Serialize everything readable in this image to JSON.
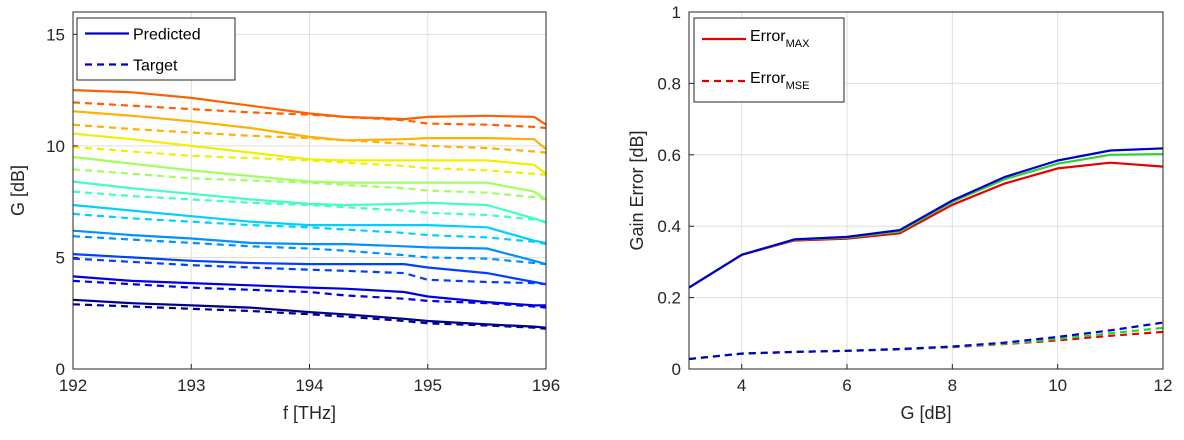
{
  "chart_data": [
    {
      "type": "line",
      "xlabel": "f  [THz]",
      "ylabel": "G  [dB]",
      "xlim": [
        192,
        196
      ],
      "ylim": [
        0,
        16
      ],
      "xticks": [
        192,
        193,
        194,
        195,
        196
      ],
      "yticks": [
        0,
        5,
        10,
        15
      ],
      "grid": true,
      "legend": {
        "position": "top-left",
        "entries": [
          {
            "label": "Predicted",
            "style": "solid",
            "color": "#0000c8"
          },
          {
            "label": "Target",
            "style": "dashed",
            "color": "#0000c8"
          }
        ]
      },
      "x": [
        192,
        192.5,
        193,
        193.5,
        194,
        194.3,
        194.8,
        195,
        195.5,
        195.9,
        196
      ],
      "series": [
        {
          "color": "#00008f",
          "style": "solid",
          "values": [
            3.1,
            2.95,
            2.85,
            2.75,
            2.55,
            2.45,
            2.25,
            2.15,
            2.0,
            1.9,
            1.85
          ]
        },
        {
          "color": "#00008f",
          "style": "dashed",
          "values": [
            2.9,
            2.8,
            2.7,
            2.6,
            2.45,
            2.35,
            2.15,
            2.05,
            1.95,
            1.85,
            1.8
          ]
        },
        {
          "color": "#0000e6",
          "style": "solid",
          "values": [
            4.15,
            3.95,
            3.85,
            3.75,
            3.65,
            3.6,
            3.45,
            3.25,
            3.0,
            2.85,
            2.85
          ]
        },
        {
          "color": "#0000e6",
          "style": "dashed",
          "values": [
            3.95,
            3.8,
            3.65,
            3.55,
            3.45,
            3.3,
            3.15,
            3.05,
            2.95,
            2.8,
            2.75
          ]
        },
        {
          "color": "#0040ff",
          "style": "solid",
          "values": [
            5.15,
            5.0,
            4.85,
            4.75,
            4.7,
            4.7,
            4.7,
            4.55,
            4.3,
            3.9,
            3.8
          ]
        },
        {
          "color": "#0040ff",
          "style": "dashed",
          "values": [
            4.95,
            4.8,
            4.65,
            4.55,
            4.45,
            4.4,
            4.3,
            4.0,
            3.9,
            3.85,
            3.8
          ]
        },
        {
          "color": "#0090ff",
          "style": "solid",
          "values": [
            6.2,
            6.0,
            5.85,
            5.65,
            5.6,
            5.6,
            5.5,
            5.45,
            5.4,
            4.85,
            4.7
          ]
        },
        {
          "color": "#0090ff",
          "style": "dashed",
          "values": [
            5.95,
            5.8,
            5.65,
            5.5,
            5.4,
            5.3,
            5.1,
            5.0,
            4.95,
            4.75,
            4.7
          ]
        },
        {
          "color": "#00d0ff",
          "style": "solid",
          "values": [
            7.35,
            7.1,
            6.85,
            6.6,
            6.45,
            6.45,
            6.45,
            6.45,
            6.35,
            5.75,
            5.65
          ]
        },
        {
          "color": "#00d0ff",
          "style": "dashed",
          "values": [
            6.95,
            6.75,
            6.6,
            6.45,
            6.35,
            6.25,
            6.1,
            6.0,
            5.9,
            5.7,
            5.6
          ]
        },
        {
          "color": "#40ffc0",
          "style": "solid",
          "values": [
            8.4,
            8.1,
            7.85,
            7.6,
            7.4,
            7.35,
            7.4,
            7.45,
            7.35,
            6.75,
            6.55
          ]
        },
        {
          "color": "#40ffc0",
          "style": "dashed",
          "values": [
            7.95,
            7.75,
            7.6,
            7.45,
            7.35,
            7.25,
            7.1,
            7.0,
            6.9,
            6.7,
            6.6
          ]
        },
        {
          "color": "#a0ff60",
          "style": "solid",
          "values": [
            9.5,
            9.2,
            8.9,
            8.65,
            8.4,
            8.35,
            8.35,
            8.35,
            8.35,
            7.95,
            7.6
          ]
        },
        {
          "color": "#a0ff60",
          "style": "dashed",
          "values": [
            8.95,
            8.75,
            8.55,
            8.45,
            8.35,
            8.25,
            8.1,
            8.0,
            7.9,
            7.7,
            7.6
          ]
        },
        {
          "color": "#f0f000",
          "style": "solid",
          "values": [
            10.55,
            10.3,
            10.0,
            9.7,
            9.4,
            9.35,
            9.35,
            9.35,
            9.35,
            9.15,
            8.75
          ]
        },
        {
          "color": "#f0f000",
          "style": "dashed",
          "values": [
            9.95,
            9.75,
            9.55,
            9.45,
            9.35,
            9.25,
            9.1,
            9.0,
            8.9,
            8.75,
            8.7
          ]
        },
        {
          "color": "#ffb000",
          "style": "solid",
          "values": [
            11.55,
            11.35,
            11.1,
            10.8,
            10.4,
            10.25,
            10.3,
            10.35,
            10.35,
            10.3,
            9.85
          ]
        },
        {
          "color": "#ffb000",
          "style": "dashed",
          "values": [
            10.95,
            10.75,
            10.6,
            10.45,
            10.35,
            10.25,
            10.1,
            10.0,
            9.9,
            9.75,
            9.7
          ]
        },
        {
          "color": "#ff6000",
          "style": "solid",
          "values": [
            12.5,
            12.4,
            12.15,
            11.8,
            11.45,
            11.3,
            11.2,
            11.3,
            11.35,
            11.3,
            10.95
          ]
        },
        {
          "color": "#ff6000",
          "style": "dashed",
          "values": [
            11.95,
            11.8,
            11.65,
            11.5,
            11.4,
            11.3,
            11.15,
            11.0,
            10.95,
            10.85,
            10.8
          ]
        }
      ]
    },
    {
      "type": "line",
      "xlabel": "G  [dB]",
      "ylabel": "Gain Error  [dB]",
      "xlim": [
        3,
        12
      ],
      "ylim": [
        0,
        1
      ],
      "xticks": [
        4,
        6,
        8,
        10,
        12
      ],
      "yticks": [
        0,
        0.2,
        0.4,
        0.6,
        0.8,
        1
      ],
      "grid": true,
      "legend": {
        "position": "top-left",
        "entries": [
          {
            "label": "Error",
            "sub": "MAX",
            "style": "solid",
            "color": "#e60000"
          },
          {
            "label": "Error",
            "sub": "MSE",
            "style": "dashed",
            "color": "#e60000"
          }
        ]
      },
      "x": [
        3,
        4,
        5,
        6,
        7,
        8,
        9,
        10,
        11,
        12
      ],
      "series": [
        {
          "color": "#e60000",
          "style": "solid",
          "values": [
            0.228,
            0.32,
            0.36,
            0.365,
            0.38,
            0.46,
            0.52,
            0.562,
            0.578,
            0.567
          ]
        },
        {
          "color": "#30d030",
          "style": "solid",
          "values": [
            0.228,
            0.32,
            0.362,
            0.368,
            0.385,
            0.468,
            0.532,
            0.575,
            0.6,
            0.602
          ]
        },
        {
          "color": "#0000cc",
          "style": "solid",
          "values": [
            0.228,
            0.32,
            0.363,
            0.37,
            0.389,
            0.472,
            0.538,
            0.584,
            0.612,
            0.618
          ]
        },
        {
          "color": "#e60000",
          "style": "dashed",
          "values": [
            0.028,
            0.043,
            0.048,
            0.051,
            0.055,
            0.061,
            0.07,
            0.08,
            0.093,
            0.104
          ]
        },
        {
          "color": "#30d030",
          "style": "dashed",
          "values": [
            0.028,
            0.043,
            0.048,
            0.051,
            0.055,
            0.062,
            0.071,
            0.084,
            0.1,
            0.115
          ]
        },
        {
          "color": "#0000cc",
          "style": "dashed",
          "values": [
            0.028,
            0.043,
            0.048,
            0.051,
            0.056,
            0.063,
            0.074,
            0.09,
            0.108,
            0.13
          ]
        }
      ]
    }
  ]
}
